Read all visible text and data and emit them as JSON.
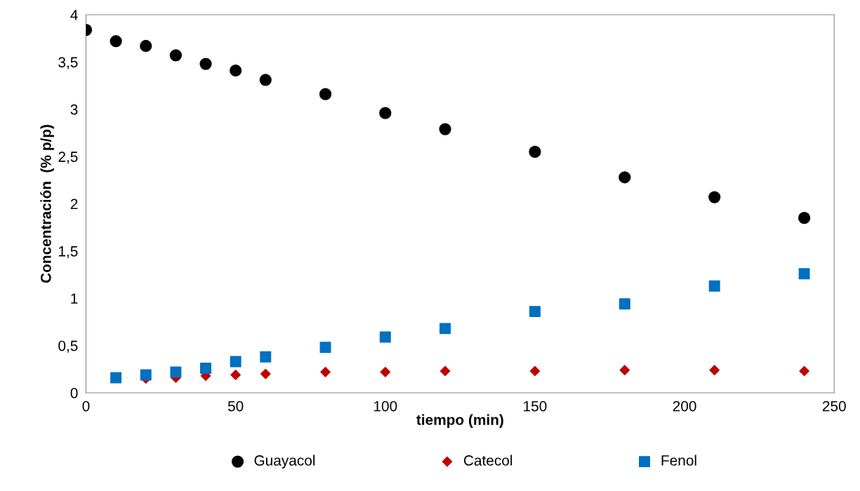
{
  "chart_data": {
    "type": "scatter",
    "xlabel": "tiempo (min)",
    "ylabel": "Concentración  (% p/p)",
    "xlim": [
      0,
      250
    ],
    "xticks": [
      0,
      50,
      100,
      150,
      200,
      250
    ],
    "ylim": [
      0,
      4
    ],
    "yticks": [
      0,
      {
        "value": 0.5,
        "label": "0,5"
      },
      1,
      {
        "value": 1.5,
        "label": "1,5"
      },
      2,
      {
        "value": 2.5,
        "label": "2,5"
      },
      3,
      {
        "value": 3.5,
        "label": "3,5"
      },
      4
    ],
    "grid": false,
    "legend": "bottom",
    "series": [
      {
        "name": "Guayacol",
        "color": "#000000",
        "marker": "circle",
        "x": [
          0,
          10,
          20,
          30,
          40,
          50,
          60,
          80,
          100,
          120,
          150,
          180,
          210,
          240
        ],
        "values": [
          3.84,
          3.72,
          3.67,
          3.57,
          3.48,
          3.41,
          3.31,
          3.16,
          2.96,
          2.79,
          2.55,
          2.28,
          2.07,
          1.85
        ]
      },
      {
        "name": "Catecol",
        "color": "#c00000",
        "marker": "diamond",
        "x": [
          20,
          30,
          40,
          50,
          60,
          80,
          100,
          120,
          150,
          180,
          210,
          240
        ],
        "values": [
          0.15,
          0.16,
          0.18,
          0.19,
          0.2,
          0.22,
          0.22,
          0.23,
          0.23,
          0.24,
          0.24,
          0.23
        ]
      },
      {
        "name": "Fenol",
        "color": "#0070c0",
        "marker": "square",
        "x": [
          10,
          20,
          30,
          40,
          50,
          60,
          80,
          100,
          120,
          150,
          180,
          210,
          240
        ],
        "values": [
          0.16,
          0.19,
          0.22,
          0.26,
          0.33,
          0.38,
          0.48,
          0.59,
          0.68,
          0.86,
          0.94,
          1.13,
          1.26
        ]
      }
    ]
  }
}
